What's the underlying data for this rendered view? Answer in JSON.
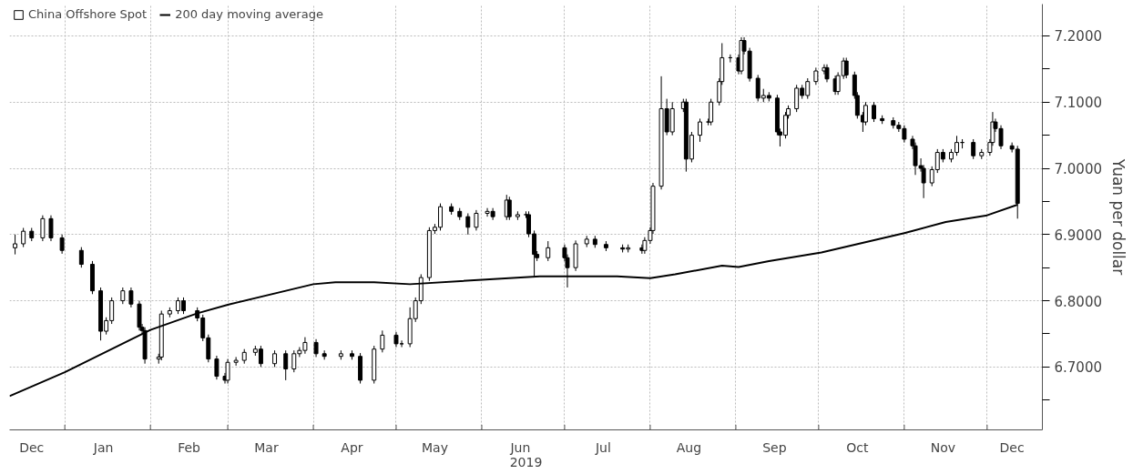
{
  "chart_data": {
    "type": "candlestick",
    "xlabel": "2019",
    "ylabel": "Yuan per dollar",
    "xlim": [
      "2018-12-12",
      "2019-12-21"
    ],
    "xticks": [
      {
        "value": "2018-12-20",
        "label": "Dec"
      },
      {
        "value": "2019-01-01",
        "label": null
      },
      {
        "value": "2019-01-15",
        "label": "Jan"
      },
      {
        "value": "2019-02-01",
        "label": null
      },
      {
        "value": "2019-02-15",
        "label": "Feb"
      },
      {
        "value": "2019-03-01",
        "label": null
      },
      {
        "value": "2019-03-15",
        "label": "Mar"
      },
      {
        "value": "2019-04-01",
        "label": null
      },
      {
        "value": "2019-04-15",
        "label": "Apr"
      },
      {
        "value": "2019-05-01",
        "label": null
      },
      {
        "value": "2019-05-15",
        "label": "May"
      },
      {
        "value": "2019-06-01",
        "label": null
      },
      {
        "value": "2019-06-15",
        "label": "Jun"
      },
      {
        "value": "2019-07-01",
        "label": null
      },
      {
        "value": "2019-07-15",
        "label": "Jul"
      },
      {
        "value": "2019-08-01",
        "label": null
      },
      {
        "value": "2019-08-15",
        "label": "Aug"
      },
      {
        "value": "2019-09-01",
        "label": null
      },
      {
        "value": "2019-09-15",
        "label": "Sep"
      },
      {
        "value": "2019-10-01",
        "label": null
      },
      {
        "value": "2019-10-15",
        "label": "Oct"
      },
      {
        "value": "2019-11-01",
        "label": null
      },
      {
        "value": "2019-11-15",
        "label": "Nov"
      },
      {
        "value": "2019-12-01",
        "label": null
      },
      {
        "value": "2019-12-10",
        "label": "Dec"
      }
    ],
    "ylim": [
      6.605,
      7.248
    ],
    "yticks": [
      {
        "value": 6.65,
        "label": null
      },
      {
        "value": 6.7,
        "label": "6.7000"
      },
      {
        "value": 6.75,
        "label": null
      },
      {
        "value": 6.8,
        "label": "6.8000"
      },
      {
        "value": 6.85,
        "label": null
      },
      {
        "value": 6.9,
        "label": "6.9000"
      },
      {
        "value": 6.95,
        "label": null
      },
      {
        "value": 7.0,
        "label": "7.0000"
      },
      {
        "value": 7.05,
        "label": null
      },
      {
        "value": 7.1,
        "label": "7.1000"
      },
      {
        "value": 7.15,
        "label": null
      },
      {
        "value": 7.2,
        "label": "7.2000"
      }
    ],
    "grid": true,
    "legend": "top left",
    "series": [
      {
        "name": "China Offshore Spot",
        "color": "#000000",
        "x": [
          "2018-12-14",
          "2018-12-17",
          "2018-12-20",
          "2018-12-24",
          "2018-12-27",
          "2018-12-31",
          "2019-01-07",
          "2019-01-11",
          "2019-01-14",
          "2019-01-16",
          "2019-01-18",
          "2019-01-22",
          "2019-01-25",
          "2019-01-28",
          "2019-01-29",
          "2019-01-30",
          "2019-02-04",
          "2019-02-05",
          "2019-02-08",
          "2019-02-11",
          "2019-02-13",
          "2019-02-18",
          "2019-02-20",
          "2019-02-22",
          "2019-02-25",
          "2019-02-28",
          "2019-03-01",
          "2019-03-04",
          "2019-03-07",
          "2019-03-11",
          "2019-03-13",
          "2019-03-18",
          "2019-03-22",
          "2019-03-25",
          "2019-03-27",
          "2019-03-29",
          "2019-04-02",
          "2019-04-05",
          "2019-04-11",
          "2019-04-15",
          "2019-04-18",
          "2019-04-23",
          "2019-04-26",
          "2019-05-01",
          "2019-05-03",
          "2019-05-06",
          "2019-05-08",
          "2019-05-10",
          "2019-05-13",
          "2019-05-15",
          "2019-05-17",
          "2019-05-21",
          "2019-05-24",
          "2019-05-27",
          "2019-05-30",
          "2019-06-03",
          "2019-06-05",
          "2019-06-10",
          "2019-06-11",
          "2019-06-14",
          "2019-06-17",
          "2019-06-18",
          "2019-06-20",
          "2019-06-21",
          "2019-06-25",
          "2019-07-01",
          "2019-07-02",
          "2019-07-05",
          "2019-07-09",
          "2019-07-12",
          "2019-07-16",
          "2019-07-22",
          "2019-07-24",
          "2019-07-29",
          "2019-07-30",
          "2019-08-01",
          "2019-08-02",
          "2019-08-05",
          "2019-08-07",
          "2019-08-09",
          "2019-08-13",
          "2019-08-14",
          "2019-08-16",
          "2019-08-19",
          "2019-08-22",
          "2019-08-23",
          "2019-08-26",
          "2019-08-27",
          "2019-08-30",
          "2019-09-02",
          "2019-09-03",
          "2019-09-04",
          "2019-09-06",
          "2019-09-09",
          "2019-09-11",
          "2019-09-13",
          "2019-09-16",
          "2019-09-17",
          "2019-09-19",
          "2019-09-20",
          "2019-09-23",
          "2019-09-25",
          "2019-09-27",
          "2019-09-30",
          "2019-10-03",
          "2019-10-04",
          "2019-10-07",
          "2019-10-08",
          "2019-10-10",
          "2019-10-11",
          "2019-10-14",
          "2019-10-15",
          "2019-10-17",
          "2019-10-18",
          "2019-10-21",
          "2019-10-24",
          "2019-10-28",
          "2019-10-30",
          "2019-11-01",
          "2019-11-04",
          "2019-11-05",
          "2019-11-07",
          "2019-11-08",
          "2019-11-11",
          "2019-11-13",
          "2019-11-15",
          "2019-11-18",
          "2019-11-20",
          "2019-11-22",
          "2019-11-26",
          "2019-11-29",
          "2019-12-02",
          "2019-12-03",
          "2019-12-04",
          "2019-12-06",
          "2019-12-10",
          "2019-12-12"
        ],
        "ohlc": [
          [
            6.88,
            6.9,
            6.87,
            6.886
          ],
          [
            6.886,
            6.91,
            6.881,
            6.905
          ],
          [
            6.905,
            6.91,
            6.89,
            6.895
          ],
          [
            6.895,
            6.929,
            6.89,
            6.924
          ],
          [
            6.924,
            6.929,
            6.89,
            6.895
          ],
          [
            6.895,
            6.9,
            6.871,
            6.876
          ],
          [
            6.876,
            6.881,
            6.85,
            6.855
          ],
          [
            6.855,
            6.86,
            6.81,
            6.815
          ],
          [
            6.815,
            6.82,
            6.74,
            6.754
          ],
          [
            6.754,
            6.775,
            6.749,
            6.77
          ],
          [
            6.77,
            6.805,
            6.765,
            6.8
          ],
          [
            6.8,
            6.82,
            6.795,
            6.815
          ],
          [
            6.815,
            6.82,
            6.79,
            6.795
          ],
          [
            6.795,
            6.8,
            6.755,
            6.76
          ],
          [
            6.76,
            6.765,
            6.75,
            6.755
          ],
          [
            6.755,
            6.76,
            6.705,
            6.712
          ],
          [
            6.712,
            6.72,
            6.705,
            6.715
          ],
          [
            6.715,
            6.785,
            6.71,
            6.78
          ],
          [
            6.78,
            6.79,
            6.775,
            6.785
          ],
          [
            6.785,
            6.805,
            6.78,
            6.8
          ],
          [
            6.8,
            6.805,
            6.78,
            6.785
          ],
          [
            6.785,
            6.79,
            6.769,
            6.774
          ],
          [
            6.774,
            6.779,
            6.739,
            6.744
          ],
          [
            6.744,
            6.749,
            6.707,
            6.712
          ],
          [
            6.712,
            6.717,
            6.681,
            6.686
          ],
          [
            6.686,
            6.691,
            6.675,
            6.68
          ],
          [
            6.68,
            6.712,
            6.675,
            6.707
          ],
          [
            6.707,
            6.715,
            6.702,
            6.71
          ],
          [
            6.71,
            6.727,
            6.705,
            6.722
          ],
          [
            6.722,
            6.732,
            6.717,
            6.727
          ],
          [
            6.727,
            6.732,
            6.7,
            6.705
          ],
          [
            6.705,
            6.725,
            6.7,
            6.72
          ],
          [
            6.72,
            6.725,
            6.68,
            6.697
          ],
          [
            6.697,
            6.725,
            6.692,
            6.72
          ],
          [
            6.72,
            6.73,
            6.715,
            6.725
          ],
          [
            6.725,
            6.745,
            6.72,
            6.737
          ],
          [
            6.737,
            6.742,
            6.715,
            6.72
          ],
          [
            6.72,
            6.725,
            6.711,
            6.716
          ],
          [
            6.716,
            6.725,
            6.711,
            6.72
          ],
          [
            6.72,
            6.725,
            6.711,
            6.716
          ],
          [
            6.716,
            6.721,
            6.675,
            6.68
          ],
          [
            6.68,
            6.732,
            6.675,
            6.727
          ],
          [
            6.727,
            6.755,
            6.722,
            6.748
          ],
          [
            6.748,
            6.753,
            6.73,
            6.735
          ],
          [
            6.735,
            6.74,
            6.73,
            6.735
          ],
          [
            6.735,
            6.79,
            6.73,
            6.773
          ],
          [
            6.773,
            6.805,
            6.768,
            6.8
          ],
          [
            6.8,
            6.84,
            6.795,
            6.835
          ],
          [
            6.835,
            6.911,
            6.83,
            6.906
          ],
          [
            6.906,
            6.916,
            6.901,
            6.911
          ],
          [
            6.911,
            6.947,
            6.906,
            6.942
          ],
          [
            6.942,
            6.947,
            6.93,
            6.935
          ],
          [
            6.935,
            6.94,
            6.922,
            6.927
          ],
          [
            6.927,
            6.932,
            6.9,
            6.911
          ],
          [
            6.911,
            6.937,
            6.906,
            6.932
          ],
          [
            6.932,
            6.94,
            6.927,
            6.935
          ],
          [
            6.935,
            6.94,
            6.922,
            6.927
          ],
          [
            6.927,
            6.96,
            6.922,
            6.952
          ],
          [
            6.952,
            6.957,
            6.922,
            6.927
          ],
          [
            6.927,
            6.935,
            6.922,
            6.93
          ],
          [
            6.93,
            6.935,
            6.925,
            6.93
          ],
          [
            6.93,
            6.935,
            6.896,
            6.901
          ],
          [
            6.901,
            6.906,
            6.837,
            6.87
          ],
          [
            6.87,
            6.875,
            6.86,
            6.865
          ],
          [
            6.865,
            6.89,
            6.86,
            6.88
          ],
          [
            6.88,
            6.885,
            6.86,
            6.865
          ],
          [
            6.865,
            6.87,
            6.82,
            6.85
          ],
          [
            6.85,
            6.891,
            6.845,
            6.886
          ],
          [
            6.886,
            6.898,
            6.881,
            6.893
          ],
          [
            6.893,
            6.898,
            6.88,
            6.885
          ],
          [
            6.885,
            6.89,
            6.875,
            6.88
          ],
          [
            6.88,
            6.885,
            6.873,
            6.878
          ],
          [
            6.878,
            6.885,
            6.873,
            6.88
          ],
          [
            6.88,
            6.885,
            6.871,
            6.876
          ],
          [
            6.876,
            6.896,
            6.871,
            6.891
          ],
          [
            6.891,
            6.911,
            6.886,
            6.906
          ],
          [
            6.906,
            6.978,
            6.901,
            6.973
          ],
          [
            6.973,
            7.139,
            6.968,
            7.09
          ],
          [
            7.09,
            7.105,
            7.05,
            7.055
          ],
          [
            7.055,
            7.1,
            7.05,
            7.09
          ],
          [
            7.09,
            7.105,
            7.085,
            7.1
          ],
          [
            7.1,
            7.105,
            6.995,
            7.014
          ],
          [
            7.014,
            7.055,
            7.009,
            7.05
          ],
          [
            7.05,
            7.075,
            7.04,
            7.07
          ],
          [
            7.07,
            7.075,
            7.065,
            7.07
          ],
          [
            7.07,
            7.105,
            7.065,
            7.1
          ],
          [
            7.1,
            7.136,
            7.095,
            7.131
          ],
          [
            7.131,
            7.189,
            7.126,
            7.167
          ],
          [
            7.167,
            7.172,
            7.16,
            7.167
          ],
          [
            7.167,
            7.172,
            7.142,
            7.147
          ],
          [
            7.147,
            7.198,
            7.142,
            7.193
          ],
          [
            7.193,
            7.198,
            7.172,
            7.177
          ],
          [
            7.177,
            7.182,
            7.131,
            7.136
          ],
          [
            7.136,
            7.141,
            7.101,
            7.106
          ],
          [
            7.106,
            7.12,
            7.1,
            7.11
          ],
          [
            7.11,
            7.115,
            7.101,
            7.106
          ],
          [
            7.106,
            7.111,
            7.05,
            7.055
          ],
          [
            7.055,
            7.06,
            7.033,
            7.05
          ],
          [
            7.05,
            7.085,
            7.045,
            7.08
          ],
          [
            7.08,
            7.095,
            7.075,
            7.09
          ],
          [
            7.09,
            7.126,
            7.085,
            7.121
          ],
          [
            7.121,
            7.126,
            7.105,
            7.11
          ],
          [
            7.11,
            7.136,
            7.105,
            7.131
          ],
          [
            7.131,
            7.152,
            7.126,
            7.147
          ],
          [
            7.147,
            7.157,
            7.142,
            7.152
          ],
          [
            7.152,
            7.157,
            7.13,
            7.135
          ],
          [
            7.135,
            7.14,
            7.111,
            7.116
          ],
          [
            7.116,
            7.145,
            7.111,
            7.14
          ],
          [
            7.14,
            7.167,
            7.135,
            7.162
          ],
          [
            7.162,
            7.167,
            7.136,
            7.141
          ],
          [
            7.141,
            7.146,
            7.105,
            7.11
          ],
          [
            7.11,
            7.115,
            7.075,
            7.08
          ],
          [
            7.08,
            7.085,
            7.055,
            7.07
          ],
          [
            7.07,
            7.1,
            7.065,
            7.095
          ],
          [
            7.095,
            7.1,
            7.07,
            7.075
          ],
          [
            7.075,
            7.08,
            7.067,
            7.072
          ],
          [
            7.072,
            7.077,
            7.06,
            7.065
          ],
          [
            7.065,
            7.07,
            7.055,
            7.06
          ],
          [
            7.06,
            7.065,
            7.039,
            7.044
          ],
          [
            7.044,
            7.049,
            7.029,
            7.034
          ],
          [
            7.034,
            7.039,
            6.99,
            7.004
          ],
          [
            7.004,
            7.015,
            6.995,
            7.0
          ],
          [
            7.0,
            7.005,
            6.955,
            6.978
          ],
          [
            6.978,
            7.003,
            6.973,
            6.998
          ],
          [
            6.998,
            7.029,
            6.993,
            7.024
          ],
          [
            7.024,
            7.029,
            7.009,
            7.014
          ],
          [
            7.014,
            7.029,
            7.009,
            7.024
          ],
          [
            7.024,
            7.049,
            7.019,
            7.039
          ],
          [
            7.039,
            7.044,
            7.03,
            7.039
          ],
          [
            7.039,
            7.044,
            7.014,
            7.019
          ],
          [
            7.019,
            7.029,
            7.014,
            7.024
          ],
          [
            7.024,
            7.044,
            7.019,
            7.039
          ],
          [
            7.039,
            7.085,
            7.034,
            7.07
          ],
          [
            7.07,
            7.075,
            7.055,
            7.06
          ],
          [
            7.06,
            7.065,
            7.029,
            7.034
          ],
          [
            7.034,
            7.039,
            7.024,
            7.029
          ],
          [
            7.029,
            7.034,
            6.924,
            6.947
          ]
        ]
      },
      {
        "name": "200 day moving average",
        "type": "line",
        "color": "#000000",
        "x": [
          "2018-12-12",
          "2019-01-01",
          "2019-02-01",
          "2019-02-18",
          "2019-03-01",
          "2019-04-01",
          "2019-04-09",
          "2019-04-23",
          "2019-05-06",
          "2019-06-22",
          "2019-07-20",
          "2019-08-01",
          "2019-08-10",
          "2019-08-27",
          "2019-09-02",
          "2019-09-13",
          "2019-10-02",
          "2019-11-01",
          "2019-11-16",
          "2019-12-01",
          "2019-12-12"
        ],
        "values": [
          6.656,
          6.692,
          6.756,
          6.781,
          6.794,
          6.825,
          6.828,
          6.828,
          6.825,
          6.837,
          6.837,
          6.834,
          6.84,
          6.853,
          6.851,
          6.86,
          6.873,
          6.902,
          6.919,
          6.929,
          6.945
        ]
      }
    ]
  }
}
